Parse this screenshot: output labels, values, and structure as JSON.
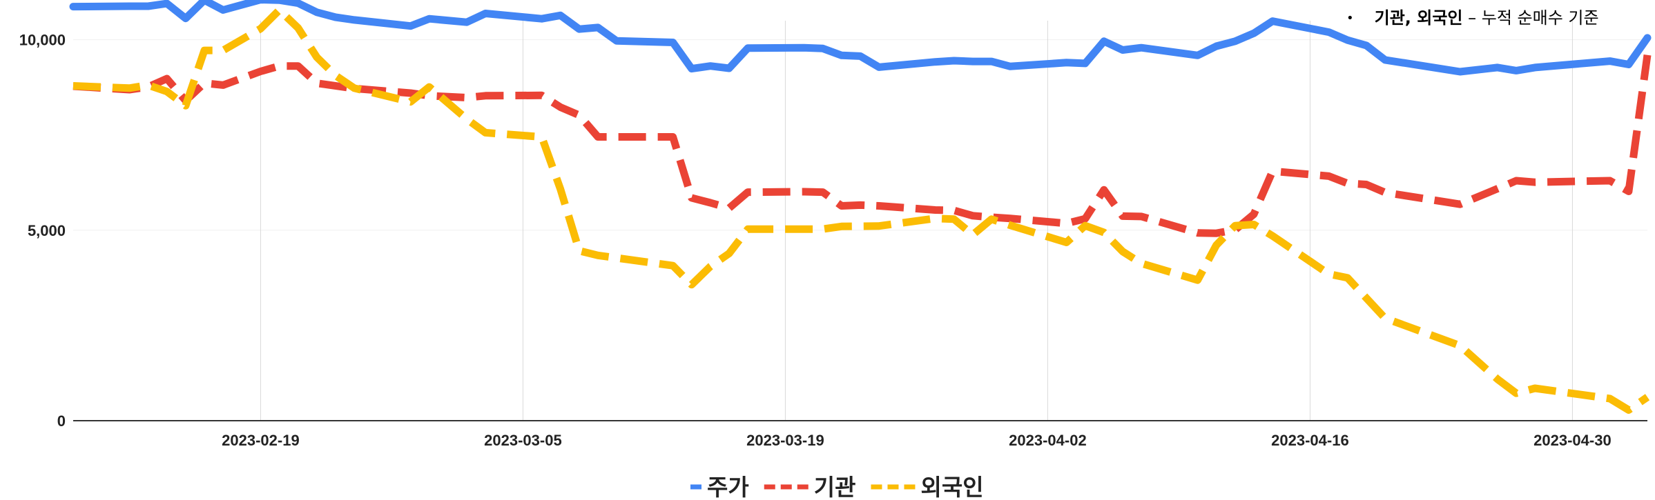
{
  "note": {
    "bullet": "•",
    "bold_part": "기관, 외국인",
    "rest": " – 누적 순매수 기준"
  },
  "chart_data": {
    "type": "line",
    "title": "",
    "xlabel": "",
    "ylabel": "",
    "ylim": [
      0,
      10500
    ],
    "xlim": [
      "2023-02-09",
      "2023-05-04"
    ],
    "x_ticks": [
      "2023-02-19",
      "2023-03-05",
      "2023-03-19",
      "2023-04-02",
      "2023-04-16",
      "2023-04-30"
    ],
    "y_ticks": [
      0,
      5000,
      10000
    ],
    "y_tick_labels": [
      "0",
      "5,000",
      "10,000"
    ],
    "grid": {
      "vertical": true,
      "horizontal": true
    },
    "legend_position": "bottom",
    "series": [
      {
        "name": "주가",
        "color": "#4285F4",
        "dash": "solid",
        "x": [
          "2023-02-09",
          "2023-02-12",
          "2023-02-13",
          "2023-02-14",
          "2023-02-15",
          "2023-02-16",
          "2023-02-17",
          "2023-02-19",
          "2023-02-20",
          "2023-02-21",
          "2023-02-22",
          "2023-02-23",
          "2023-02-24",
          "2023-02-27",
          "2023-02-28",
          "2023-03-02",
          "2023-03-03",
          "2023-03-06",
          "2023-03-07",
          "2023-03-08",
          "2023-03-09",
          "2023-03-10",
          "2023-03-13",
          "2023-03-14",
          "2023-03-15",
          "2023-03-16",
          "2023-03-17",
          "2023-03-20",
          "2023-03-21",
          "2023-03-22",
          "2023-03-23",
          "2023-03-24",
          "2023-03-27",
          "2023-03-28",
          "2023-03-29",
          "2023-03-30",
          "2023-03-31",
          "2023-04-03",
          "2023-04-04",
          "2023-04-05",
          "2023-04-06",
          "2023-04-07",
          "2023-04-10",
          "2023-04-11",
          "2023-04-12",
          "2023-04-13",
          "2023-04-14",
          "2023-04-17",
          "2023-04-18",
          "2023-04-19",
          "2023-04-20",
          "2023-04-24",
          "2023-04-26",
          "2023-04-27",
          "2023-04-28",
          "2023-05-02",
          "2023-05-03",
          "2023-05-04"
        ],
        "values": [
          10870,
          10880,
          10880,
          10950,
          10560,
          11040,
          10780,
          11050,
          11040,
          10960,
          10720,
          10590,
          10520,
          10360,
          10550,
          10460,
          10690,
          10550,
          10640,
          10280,
          10320,
          9970,
          9930,
          9240,
          9310,
          9250,
          9780,
          9790,
          9770,
          9590,
          9570,
          9280,
          9420,
          9450,
          9430,
          9430,
          9300,
          9400,
          9380,
          9960,
          9730,
          9790,
          9590,
          9830,
          9960,
          10170,
          10490,
          10200,
          9990,
          9850,
          9470,
          9160,
          9270,
          9190,
          9270,
          9440,
          9350,
          10050
        ]
      },
      {
        "name": "기관",
        "color": "#EA4335",
        "dash": "dashed",
        "x": [
          "2023-02-09",
          "2023-02-12",
          "2023-02-13",
          "2023-02-14",
          "2023-02-15",
          "2023-02-16",
          "2023-02-17",
          "2023-02-19",
          "2023-02-20",
          "2023-02-21",
          "2023-02-22",
          "2023-02-24",
          "2023-02-27",
          "2023-02-28",
          "2023-03-02",
          "2023-03-03",
          "2023-03-06",
          "2023-03-07",
          "2023-03-08",
          "2023-03-09",
          "2023-03-10",
          "2023-03-13",
          "2023-03-14",
          "2023-03-15",
          "2023-03-16",
          "2023-03-17",
          "2023-03-20",
          "2023-03-21",
          "2023-03-22",
          "2023-03-23",
          "2023-03-24",
          "2023-03-27",
          "2023-03-28",
          "2023-03-29",
          "2023-03-30",
          "2023-03-31",
          "2023-04-03",
          "2023-04-04",
          "2023-04-05",
          "2023-04-06",
          "2023-04-07",
          "2023-04-10",
          "2023-04-11",
          "2023-04-12",
          "2023-04-13",
          "2023-04-14",
          "2023-04-17",
          "2023-04-18",
          "2023-04-19",
          "2023-04-20",
          "2023-04-24",
          "2023-04-26",
          "2023-04-27",
          "2023-04-28",
          "2023-05-02",
          "2023-05-03",
          "2023-05-04"
        ],
        "values": [
          8780,
          8690,
          8760,
          8980,
          8400,
          8860,
          8810,
          9170,
          9310,
          9310,
          8860,
          8720,
          8600,
          8530,
          8480,
          8530,
          8540,
          8230,
          8020,
          7450,
          7450,
          7450,
          5850,
          5720,
          5580,
          6000,
          6010,
          6000,
          5640,
          5660,
          5640,
          5530,
          5520,
          5380,
          5340,
          5310,
          5180,
          5300,
          6060,
          5370,
          5360,
          4930,
          4920,
          5010,
          5420,
          6550,
          6420,
          6230,
          6200,
          5990,
          5680,
          6090,
          6300,
          6260,
          6300,
          6020,
          9600
        ]
      },
      {
        "name": "외국인",
        "color": "#FBBC04",
        "dash": "dashed",
        "x": [
          "2023-02-09",
          "2023-02-12",
          "2023-02-13",
          "2023-02-14",
          "2023-02-15",
          "2023-02-16",
          "2023-02-17",
          "2023-02-19",
          "2023-02-20",
          "2023-02-21",
          "2023-02-22",
          "2023-02-23",
          "2023-02-24",
          "2023-02-27",
          "2023-02-28",
          "2023-03-02",
          "2023-03-03",
          "2023-03-06",
          "2023-03-07",
          "2023-03-08",
          "2023-03-09",
          "2023-03-13",
          "2023-03-14",
          "2023-03-15",
          "2023-03-16",
          "2023-03-17",
          "2023-03-20",
          "2023-03-21",
          "2023-03-22",
          "2023-03-24",
          "2023-03-27",
          "2023-03-28",
          "2023-03-29",
          "2023-03-30",
          "2023-03-31",
          "2023-04-03",
          "2023-04-04",
          "2023-04-05",
          "2023-04-06",
          "2023-04-07",
          "2023-04-10",
          "2023-04-11",
          "2023-04-12",
          "2023-04-13",
          "2023-04-14",
          "2023-04-17",
          "2023-04-18",
          "2023-04-20",
          "2023-04-24",
          "2023-04-26",
          "2023-04-27",
          "2023-04-28",
          "2023-05-02",
          "2023-05-03",
          "2023-05-04"
        ],
        "values": [
          8790,
          8730,
          8810,
          8640,
          8270,
          9720,
          9720,
          10290,
          10780,
          10310,
          9540,
          9060,
          8730,
          8370,
          8760,
          7920,
          7560,
          7450,
          6080,
          4460,
          4340,
          4070,
          3570,
          4050,
          4390,
          5030,
          5030,
          5030,
          5100,
          5110,
          5310,
          5290,
          4880,
          5290,
          5130,
          4680,
          5120,
          4940,
          4440,
          4130,
          3690,
          4610,
          5120,
          5150,
          4850,
          3850,
          3750,
          2690,
          1970,
          1090,
          720,
          850,
          580,
          280,
          620
        ]
      }
    ]
  }
}
